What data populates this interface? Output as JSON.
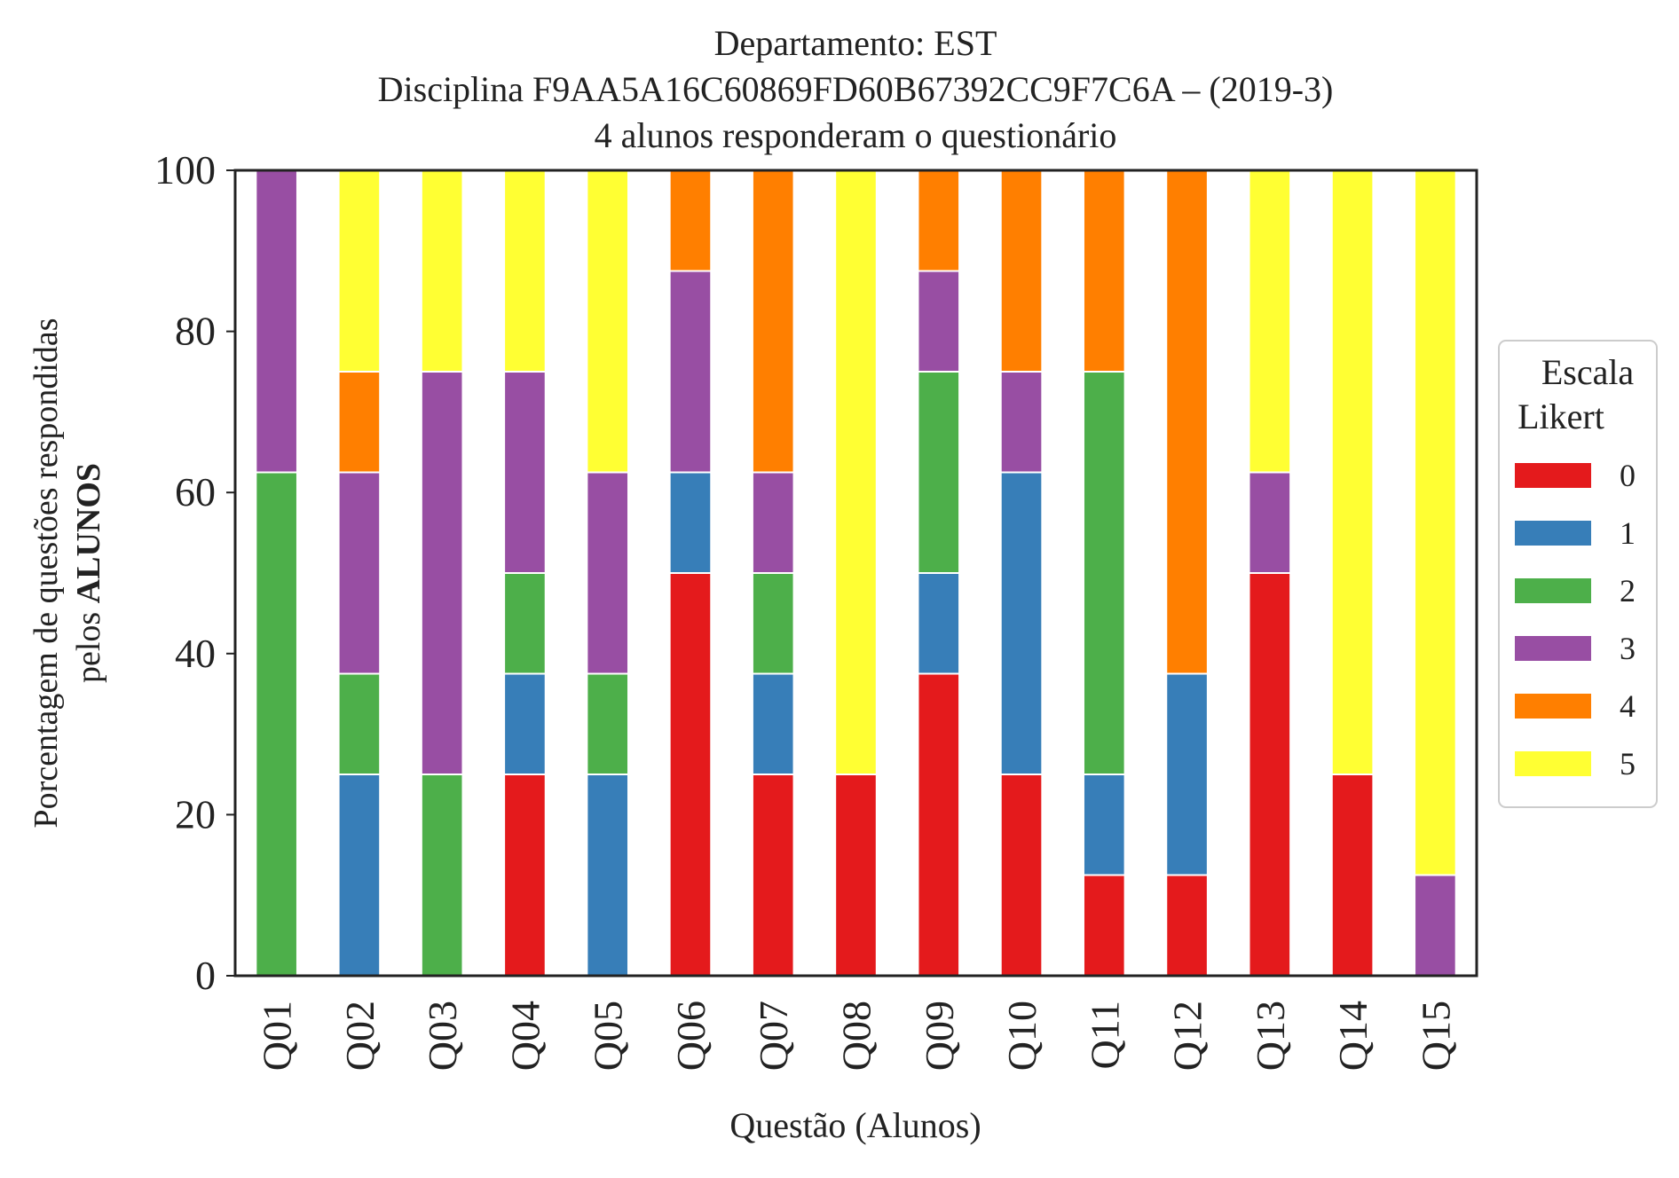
{
  "chart_data": {
    "type": "bar",
    "stacked": true,
    "title_lines": [
      "Departamento: EST",
      "Disciplina F9AA5A16C60869FD60B67392CC9F7C6A – (2019-3)",
      "4 alunos responderam o questionário"
    ],
    "xlabel": "Questão (Alunos)",
    "ylabel_line1": "Porcentagem de questões respondidas",
    "ylabel_line2_prefix": "pelos ",
    "ylabel_line2_bold": "ALUNOS",
    "ylim": [
      0,
      100
    ],
    "yticks": [
      "0",
      "20",
      "40",
      "60",
      "80",
      "100"
    ],
    "categories": [
      "Q01",
      "Q02",
      "Q03",
      "Q04",
      "Q05",
      "Q06",
      "Q07",
      "Q08",
      "Q09",
      "Q10",
      "Q11",
      "Q12",
      "Q13",
      "Q14",
      "Q15"
    ],
    "legend": {
      "title_lines": [
        "Escala",
        "Likert"
      ],
      "placement": "right"
    },
    "series": [
      {
        "name": "0",
        "color": "#e41a1c",
        "values": [
          0,
          0,
          0,
          25,
          0,
          50,
          25,
          25,
          37.5,
          25,
          12.5,
          12.5,
          50,
          25,
          0
        ]
      },
      {
        "name": "1",
        "color": "#377eb8",
        "values": [
          0,
          25,
          0,
          12.5,
          25,
          12.5,
          12.5,
          0,
          12.5,
          37.5,
          12.5,
          25,
          0,
          0,
          0
        ]
      },
      {
        "name": "2",
        "color": "#4daf4a",
        "values": [
          62.5,
          12.5,
          25,
          12.5,
          12.5,
          0,
          12.5,
          0,
          25,
          0,
          50,
          0,
          0,
          0,
          0
        ]
      },
      {
        "name": "3",
        "color": "#984ea3",
        "values": [
          37.5,
          25,
          50,
          25,
          25,
          25,
          12.5,
          0,
          12.5,
          12.5,
          0,
          0,
          12.5,
          0,
          12.5
        ]
      },
      {
        "name": "4",
        "color": "#ff7f00",
        "values": [
          0,
          12.5,
          0,
          0,
          0,
          12.5,
          37.5,
          0,
          12.5,
          25,
          25,
          62.5,
          0,
          0,
          0
        ]
      },
      {
        "name": "5",
        "color": "#ffff33",
        "values": [
          0,
          25,
          25,
          25,
          37.5,
          0,
          0,
          75,
          0,
          0,
          0,
          0,
          37.5,
          75,
          87.5
        ]
      }
    ]
  }
}
